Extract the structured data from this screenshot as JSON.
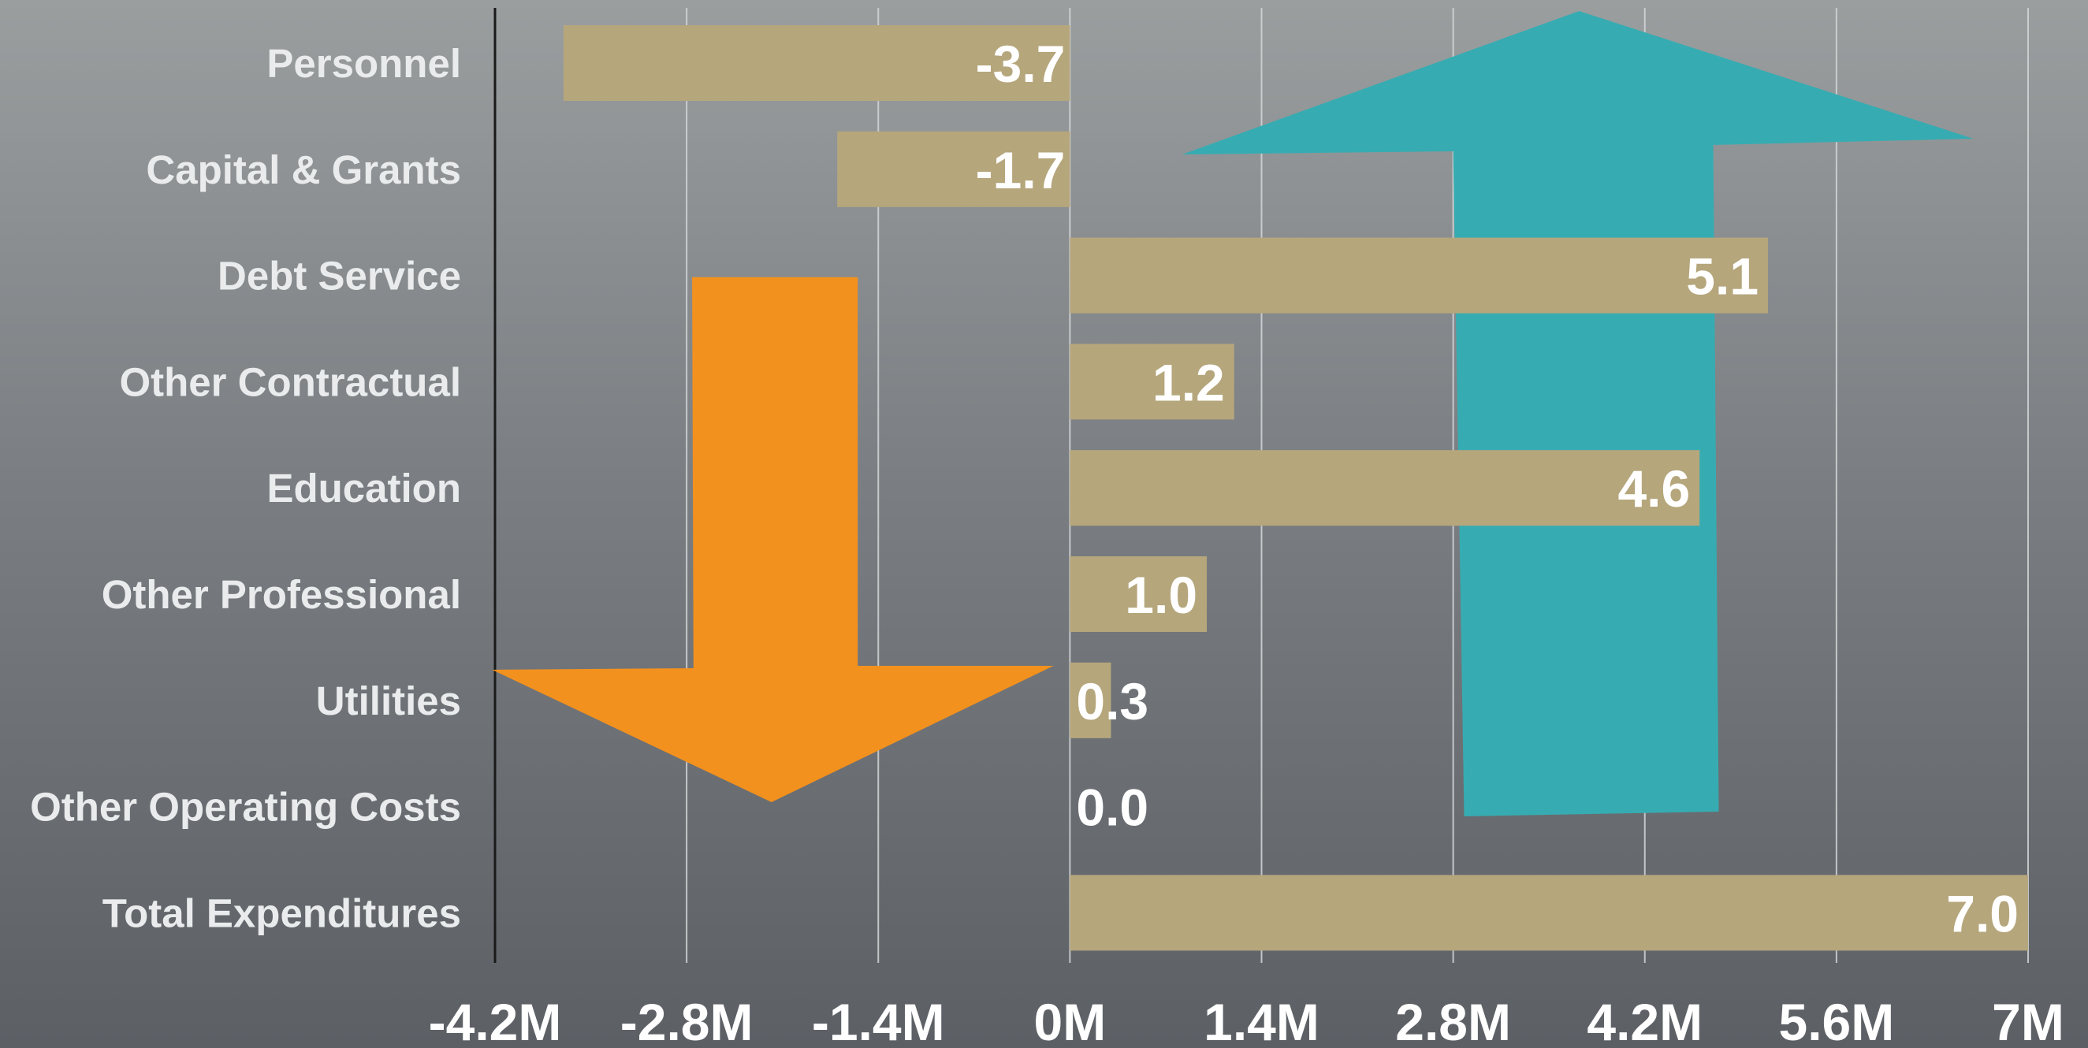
{
  "chart_data": {
    "type": "bar",
    "orientation": "horizontal",
    "categories": [
      "Personnel",
      "Capital & Grants",
      "Debt Service",
      "Other Contractual",
      "Education",
      "Other Professional",
      "Utilities",
      "Other Operating Costs",
      "Total Expenditures"
    ],
    "values": [
      -3.7,
      -1.7,
      5.1,
      1.2,
      4.6,
      1.0,
      0.3,
      0.0,
      7.0
    ],
    "value_labels": [
      "-3.7",
      "-1.7",
      "5.1",
      "1.2",
      "4.6",
      "1.0",
      "0.3",
      "0.0",
      "7.0"
    ],
    "x_ticks": [
      -4.2,
      -2.8,
      -1.4,
      0,
      1.4,
      2.8,
      4.2,
      5.6,
      7
    ],
    "x_tick_labels": [
      "-4.2M",
      "-2.8M",
      "-1.4M",
      "0M",
      "1.4M",
      "2.8M",
      "4.2M",
      "5.6M",
      "7M"
    ],
    "xlim": [
      -4.2,
      7
    ],
    "grid": true,
    "title": "",
    "xlabel": "",
    "ylabel": "",
    "colors": {
      "bar": "#b5a67c",
      "down_arrow": "#f3911e",
      "up_arrow": "#36acb2",
      "grid": "#d4d6d7",
      "axis": "#1a1a1a"
    },
    "annotations": [
      {
        "type": "arrow",
        "direction": "down",
        "color": "#f3911e"
      },
      {
        "type": "arrow",
        "direction": "up",
        "color": "#36acb2"
      }
    ]
  }
}
